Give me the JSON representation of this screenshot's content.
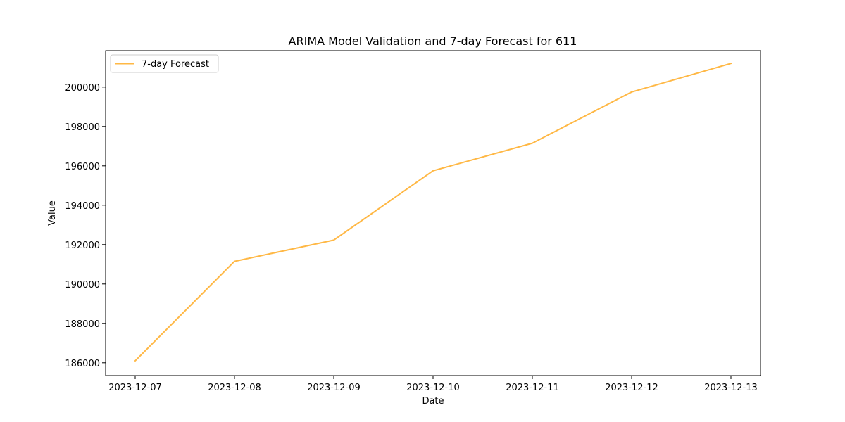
{
  "chart_data": {
    "type": "line",
    "title": "ARIMA Model Validation and 7-day Forecast for 611",
    "xlabel": "Date",
    "ylabel": "Value",
    "x": [
      "2023-12-07",
      "2023-12-08",
      "2023-12-09",
      "2023-12-10",
      "2023-12-11",
      "2023-12-12",
      "2023-12-13"
    ],
    "x_tick_labels": [
      "2023-12-07",
      "2023-12-08",
      "2023-12-09",
      "2023-12-10",
      "2023-12-11",
      "2023-12-12",
      "2023-12-13"
    ],
    "y_ticks": [
      186000,
      188000,
      190000,
      192000,
      194000,
      196000,
      198000,
      200000
    ],
    "y_tick_labels": [
      "186000",
      "188000",
      "190000",
      "192000",
      "194000",
      "196000",
      "198000",
      "200000"
    ],
    "ylim": [
      185350,
      201850
    ],
    "grid": false,
    "legend_position": "upper-left",
    "series": [
      {
        "name": "7-day Forecast",
        "color": "#ffb845",
        "values": [
          186100,
          191150,
          192230,
          195750,
          197150,
          199750,
          201200
        ]
      }
    ]
  }
}
